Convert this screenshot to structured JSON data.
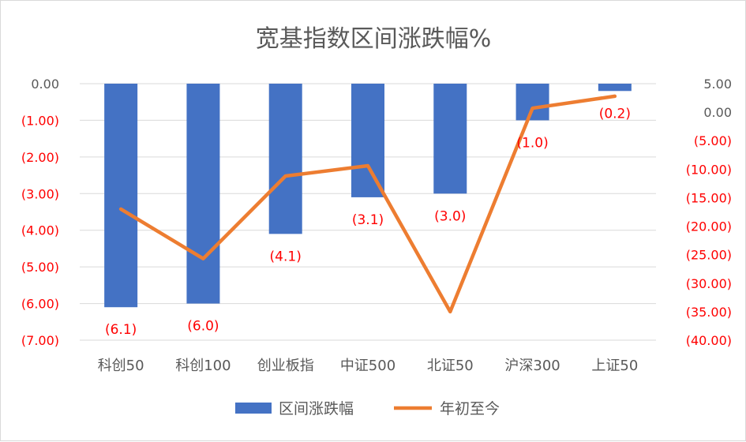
{
  "chart_data": {
    "type": "bar+line",
    "title": "宽基指数区间涨跌幅%",
    "categories": [
      "科创50",
      "科创100",
      "创业板指",
      "中证500",
      "北证50",
      "沪深300",
      "上证50"
    ],
    "series": [
      {
        "name": "区间涨跌幅",
        "type": "bar",
        "axis": "left",
        "color": "#4472C4",
        "values": [
          -6.1,
          -6.0,
          -4.1,
          -3.1,
          -3.0,
          -1.0,
          -0.2
        ],
        "data_labels": [
          "(6.1)",
          "(6.0)",
          "(4.1)",
          "(3.1)",
          "(3.0)",
          "(1.0)",
          "(0.2)"
        ]
      },
      {
        "name": "年初至今",
        "type": "line",
        "axis": "right",
        "color": "#ED7D31",
        "values": [
          -17.0,
          -25.7,
          -11.2,
          -9.4,
          -35.0,
          0.7,
          2.8
        ]
      }
    ],
    "y_left": {
      "range": [
        -7,
        0
      ],
      "ticks": [
        0,
        -1,
        -2,
        -3,
        -4,
        -5,
        -6,
        -7
      ],
      "tick_labels": [
        "0.00",
        "(1.00)",
        "(2.00)",
        "(3.00)",
        "(4.00)",
        "(5.00)",
        "(6.00)",
        "(7.00)"
      ]
    },
    "y_right": {
      "range": [
        -40,
        5
      ],
      "ticks": [
        5,
        0,
        -5,
        -10,
        -15,
        -20,
        -25,
        -30,
        -35,
        -40
      ],
      "tick_labels": [
        "5.00",
        "0.00",
        "(5.00)",
        "(10.00)",
        "(15.00)",
        "(20.00)",
        "(25.00)",
        "(30.00)",
        "(35.00)",
        "(40.00)"
      ]
    },
    "negative_label_color": "#FF0000",
    "positive_label_color": "#595959",
    "grid": true,
    "legend_position": "bottom"
  }
}
